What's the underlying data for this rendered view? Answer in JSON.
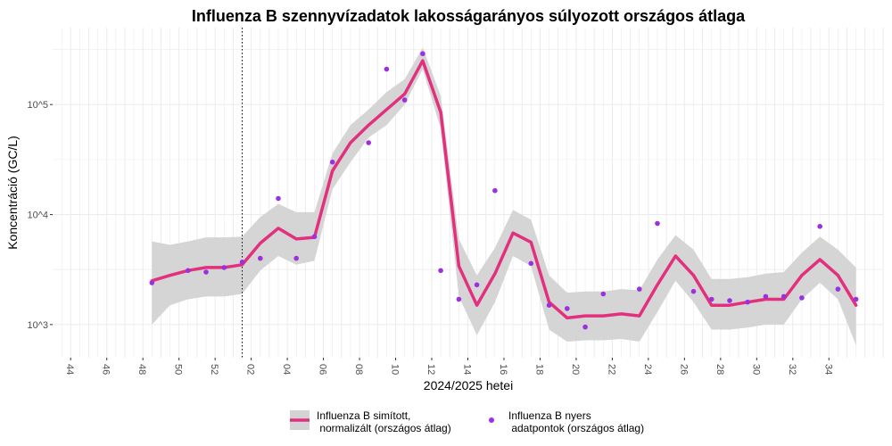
{
  "chart_data": {
    "type": "line",
    "title": "Influenza B szennyvízadatok lakosságarányos súlyozott országos átlaga",
    "xlabel": "2024/2025 hetei",
    "ylabel": "Koncentráció (GC/L)",
    "y_scale": "log10",
    "ylim": [
      500,
      500000
    ],
    "y_ticks": [
      {
        "value": 1000,
        "label": "10^3"
      },
      {
        "value": 10000,
        "label": "10^4"
      },
      {
        "value": 100000,
        "label": "10^5"
      }
    ],
    "x_tick_labels": [
      "44",
      "46",
      "48",
      "50",
      "52",
      "02",
      "04",
      "06",
      "08",
      "10",
      "12",
      "14",
      "16",
      "18",
      "20",
      "22",
      "24",
      "26",
      "28",
      "30",
      "32",
      "34"
    ],
    "x_index_range": [
      -1,
      45
    ],
    "vline_x_index": 9.5,
    "grid": true,
    "legend_position": "bottom",
    "colors": {
      "smooth_line": "#e2307e",
      "ribbon": "#d3d3d3",
      "points": "#9b30e0",
      "grid": "#ebebeb",
      "vline": "#000000"
    },
    "series": [
      {
        "name": "Influenza B simított,\n normalizált (országos átlag)",
        "kind": "smoothed",
        "x": [
          4.5,
          5.5,
          6.5,
          7.5,
          8.5,
          9.5,
          10.5,
          11.5,
          12.5,
          13.5,
          14.5,
          15.5,
          16.5,
          17.5,
          18.5,
          19.5,
          20.5,
          21.5,
          22.5,
          23.5,
          24.5,
          25.5,
          26.5,
          27.5,
          28.5,
          29.5,
          30.5,
          31.5,
          32.5,
          33.5,
          34.5,
          35.5,
          36.5,
          37.5,
          38.5,
          39.5,
          40.5,
          41.5,
          42.5,
          43.5
        ],
        "y": [
          2500,
          2800,
          3100,
          3300,
          3300,
          3500,
          5500,
          7500,
          6000,
          6200,
          25000,
          45000,
          65000,
          90000,
          125000,
          250000,
          85000,
          3400,
          1500,
          2900,
          6800,
          5600,
          1600,
          1150,
          1200,
          1200,
          1250,
          1200,
          2300,
          4200,
          2800,
          1500,
          1500,
          1600,
          1700,
          1700,
          2800,
          3900,
          2800,
          1500
        ],
        "lower": [
          1000,
          1500,
          1700,
          1800,
          1800,
          1900,
          3100,
          4200,
          3500,
          3800,
          17000,
          30000,
          50000,
          65000,
          100000,
          210000,
          60000,
          1800,
          800,
          1600,
          4200,
          3400,
          900,
          700,
          720,
          720,
          740,
          700,
          1300,
          2500,
          1600,
          900,
          900,
          940,
          1000,
          1000,
          1700,
          2400,
          1700,
          650
        ],
        "upper": [
          5700,
          5300,
          5700,
          6200,
          6200,
          6300,
          9500,
          12500,
          10500,
          10500,
          36000,
          65000,
          90000,
          130000,
          170000,
          330000,
          120000,
          6000,
          2800,
          5000,
          11000,
          9000,
          2800,
          1950,
          2000,
          2000,
          2100,
          2050,
          3900,
          6500,
          4800,
          2600,
          2600,
          2700,
          2900,
          3000,
          4500,
          6300,
          4800,
          3300
        ]
      },
      {
        "name": "Influenza B nyers\n adatpontok (országos átlag)",
        "kind": "raw",
        "x": [
          4.5,
          6.5,
          7.5,
          8.5,
          9.5,
          10.5,
          11.5,
          12.5,
          13.5,
          14.5,
          16.5,
          17.5,
          18.5,
          19.5,
          20.5,
          21.5,
          22.5,
          23.5,
          25.5,
          26.5,
          27.5,
          28.5,
          29.5,
          31.5,
          32.5,
          34.5,
          35.5,
          36.5,
          37.5,
          38.5,
          39.5,
          40.5,
          41.5,
          42.5,
          43.5
        ],
        "y": [
          2400,
          3100,
          3000,
          3300,
          3700,
          4000,
          14000,
          4000,
          6300,
          30000,
          45000,
          210000,
          110000,
          290000,
          3100,
          1700,
          2300,
          16500,
          3600,
          1500,
          1400,
          950,
          1900,
          2100,
          8300,
          2000,
          1700,
          1650,
          1600,
          1800,
          1800,
          1750,
          7800,
          2100,
          1700
        ]
      }
    ]
  }
}
